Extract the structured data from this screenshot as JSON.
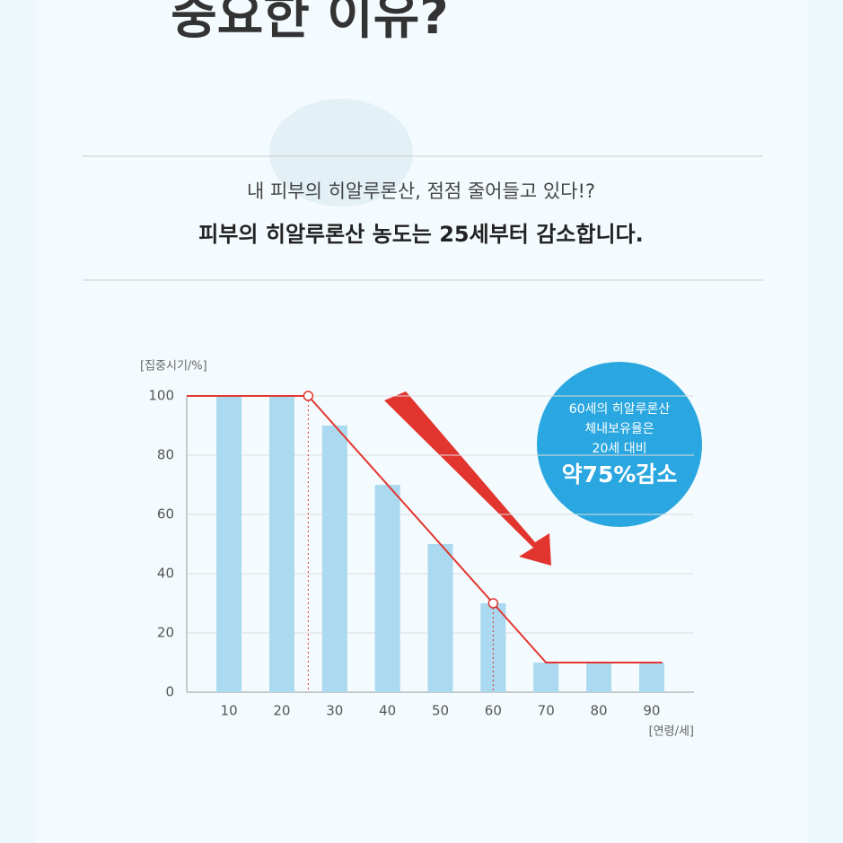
{
  "heading": "중요한 이유?",
  "intro": [
    "내 피부의 히알루론산, 점점 줄어들고 있다!?",
    "피부의 히알루론산 농도는 25세부터 감소합니다."
  ],
  "chart_data": {
    "type": "bar",
    "y_label": "[집중시기/%]",
    "x_label": "[연령/세]",
    "x": [
      10,
      20,
      30,
      40,
      50,
      60,
      70,
      80,
      90
    ],
    "values": [
      100,
      100,
      90,
      70,
      50,
      30,
      10,
      10,
      10
    ],
    "color": "#abd9f0",
    "line": {
      "x": [
        2,
        25,
        60,
        70,
        92
      ],
      "values": [
        100,
        100,
        30,
        10,
        10
      ],
      "color": "#e2352f"
    },
    "points": {
      "x": [
        25,
        60
      ],
      "values": [
        100,
        30
      ]
    },
    "xlim": [
      2,
      98
    ],
    "xticks": [
      10,
      20,
      30,
      40,
      50,
      60,
      70,
      80,
      90
    ],
    "ylim": [
      0,
      100
    ],
    "yticks": [
      0,
      20,
      40,
      60,
      80,
      100
    ],
    "grid": true,
    "annotation": [
      "60세의 히알루론산",
      "체내보유율은",
      "20세 대비",
      "약75%감소"
    ]
  }
}
